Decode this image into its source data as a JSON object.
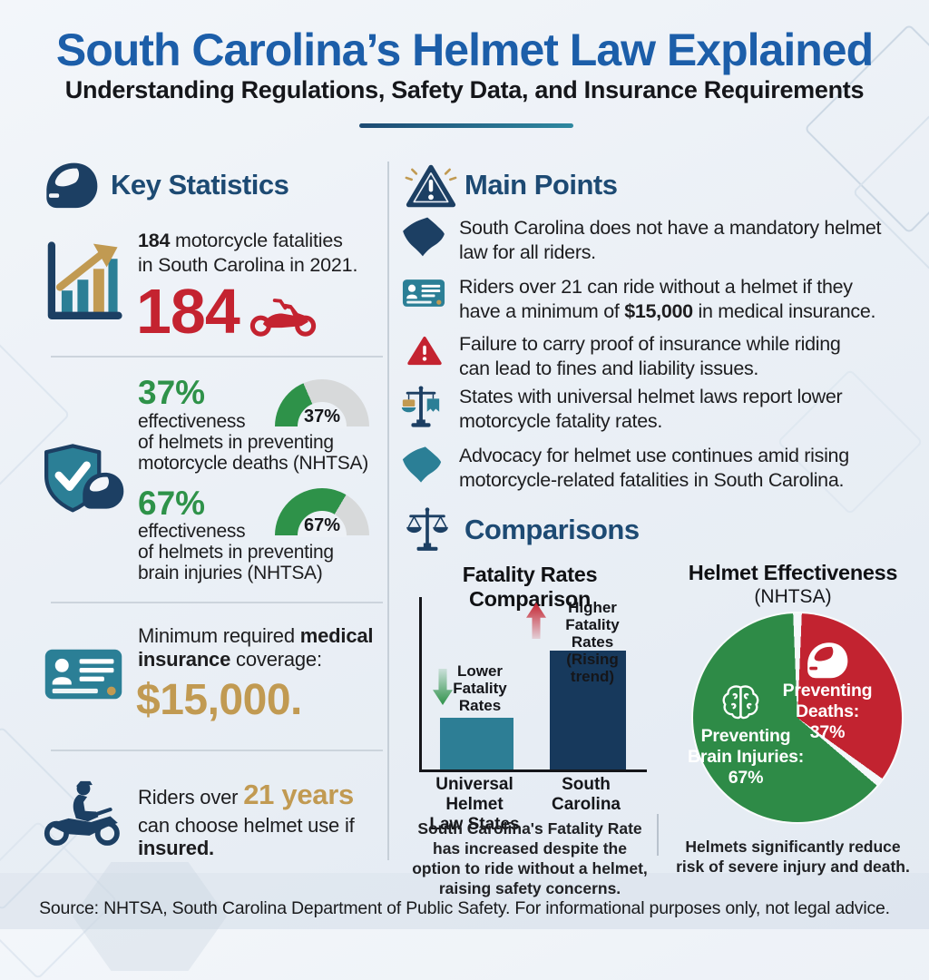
{
  "theme": {
    "title_blue": "#1c5ea9",
    "heading_navy": "#1d4a73",
    "text": "#1d1d1f",
    "red": "#c42330",
    "green": "#2e9249",
    "teal": "#2b7f96",
    "navy": "#1c3f63",
    "gold": "#c19a52",
    "bar_teal": "#2d7e95",
    "bar_navy": "#17395c",
    "gauge_gray": "#d7d9da",
    "pie_red": "#c22330",
    "pie_green": "#2e8b47"
  },
  "header": {
    "title": "South Carolina’s Helmet Law Explained",
    "subtitle": "Understanding Regulations, Safety Data, and Insurance Requirements"
  },
  "key_statistics": {
    "heading": "Key Statistics",
    "fatalities": {
      "line1_bold": "184",
      "line1_rest": " motorcycle fatalities",
      "line2": "in South Carolina in 2021.",
      "big_number": "184"
    },
    "effectiveness": [
      {
        "percent": "37%",
        "line1": "effectiveness",
        "line2": "of helmets in preventing",
        "line3": "motorcycle deaths (NHTSA)",
        "gauge_label": "37%",
        "gauge_value": 37
      },
      {
        "percent": "67%",
        "line1": "effectiveness",
        "line2": "of helmets in preventing",
        "line3": "brain injuries (NHTSA)",
        "gauge_label": "67%",
        "gauge_value": 67
      }
    ],
    "insurance": {
      "line1_pre": "Minimum required ",
      "line1_bold": "medical",
      "line2_bold": "insurance",
      "line2_rest": " coverage:",
      "amount": "$15,000."
    },
    "riders": {
      "line1_pre": "Riders over ",
      "line1_highlight": "21 years",
      "line2": "can choose helmet use if",
      "line3_bold": "insured."
    }
  },
  "main_points": {
    "heading": "Main Points",
    "items": [
      {
        "icon": "south-carolina-state-icon",
        "line1": "South Carolina does not have a mandatory helmet",
        "line2": "law for all riders."
      },
      {
        "icon": "id-card-icon",
        "line1": "Riders over 21 can ride without a helmet if they",
        "line2_pre": "have a minimum of ",
        "line2_bold": "$15,000",
        "line2_post": " in medical insurance."
      },
      {
        "icon": "alert-triangle-icon",
        "line1": "Failure to carry proof of insurance while riding",
        "line2": "can lead to fines and liability issues."
      },
      {
        "icon": "scales-icon",
        "line1": "States with universal helmet laws report lower",
        "line2": "motorcycle fatality rates."
      },
      {
        "icon": "south-carolina-state-icon",
        "line1": "Advocacy for helmet use continues amid rising",
        "line2": "motorcycle-related fatalities in South Carolina."
      }
    ]
  },
  "comparisons": {
    "heading": "Comparisons"
  },
  "chart_data": [
    {
      "type": "bar",
      "title": "Fatality Rates Comparison",
      "categories": [
        "Universal Helmet Law States",
        "South Carolina"
      ],
      "category_lines": [
        [
          "Universal Helmet",
          "Law States"
        ],
        [
          "South Carolina"
        ]
      ],
      "values_qualitative": [
        "Lower fatality rates",
        "Higher fatality rates (rising trend)"
      ],
      "bar_heights_pct": [
        30,
        69
      ],
      "colors": [
        "#2d7e95",
        "#17395c"
      ],
      "annotations": [
        {
          "arrow": "down",
          "color": "#2e9249",
          "lines": [
            "Lower",
            "Fatality",
            "Rates"
          ]
        },
        {
          "arrow": "up",
          "color": "#c42330",
          "lines": [
            "Higher",
            "Fatality Rates",
            "(Rising trend)"
          ]
        }
      ],
      "axis_scale": "none shown",
      "caption": "South Carolina's Fatality Rate has increased despite the option to ride without a helmet, raising safety concerns."
    },
    {
      "type": "pie",
      "title": "Helmet Effectiveness",
      "subtitle": "(NHTSA)",
      "slices": [
        {
          "label_line1": "Preventing",
          "label_line2": "Deaths:",
          "pct_label": "37%",
          "value": 37,
          "color": "#c22330",
          "icon": "helmet-icon"
        },
        {
          "label_line1": "Preventing",
          "label_line2": "Brain Injuries:",
          "pct_label": "67%",
          "value": 67,
          "color": "#2e8b47",
          "icon": "brain-icon"
        }
      ],
      "caption": "Helmets significantly reduce risk of severe injury and death."
    },
    {
      "type": "gauge",
      "label": "37%",
      "value": 37,
      "max": 100,
      "context": "effectiveness of helmets in preventing motorcycle deaths (NHTSA)"
    },
    {
      "type": "gauge",
      "label": "67%",
      "value": 67,
      "max": 100,
      "context": "effectiveness of helmets in preventing brain injuries (NHTSA)"
    }
  ],
  "footer": {
    "source": "Source: NHTSA, South Carolina Department of Public Safety. For informational purposes only, not legal advice."
  }
}
